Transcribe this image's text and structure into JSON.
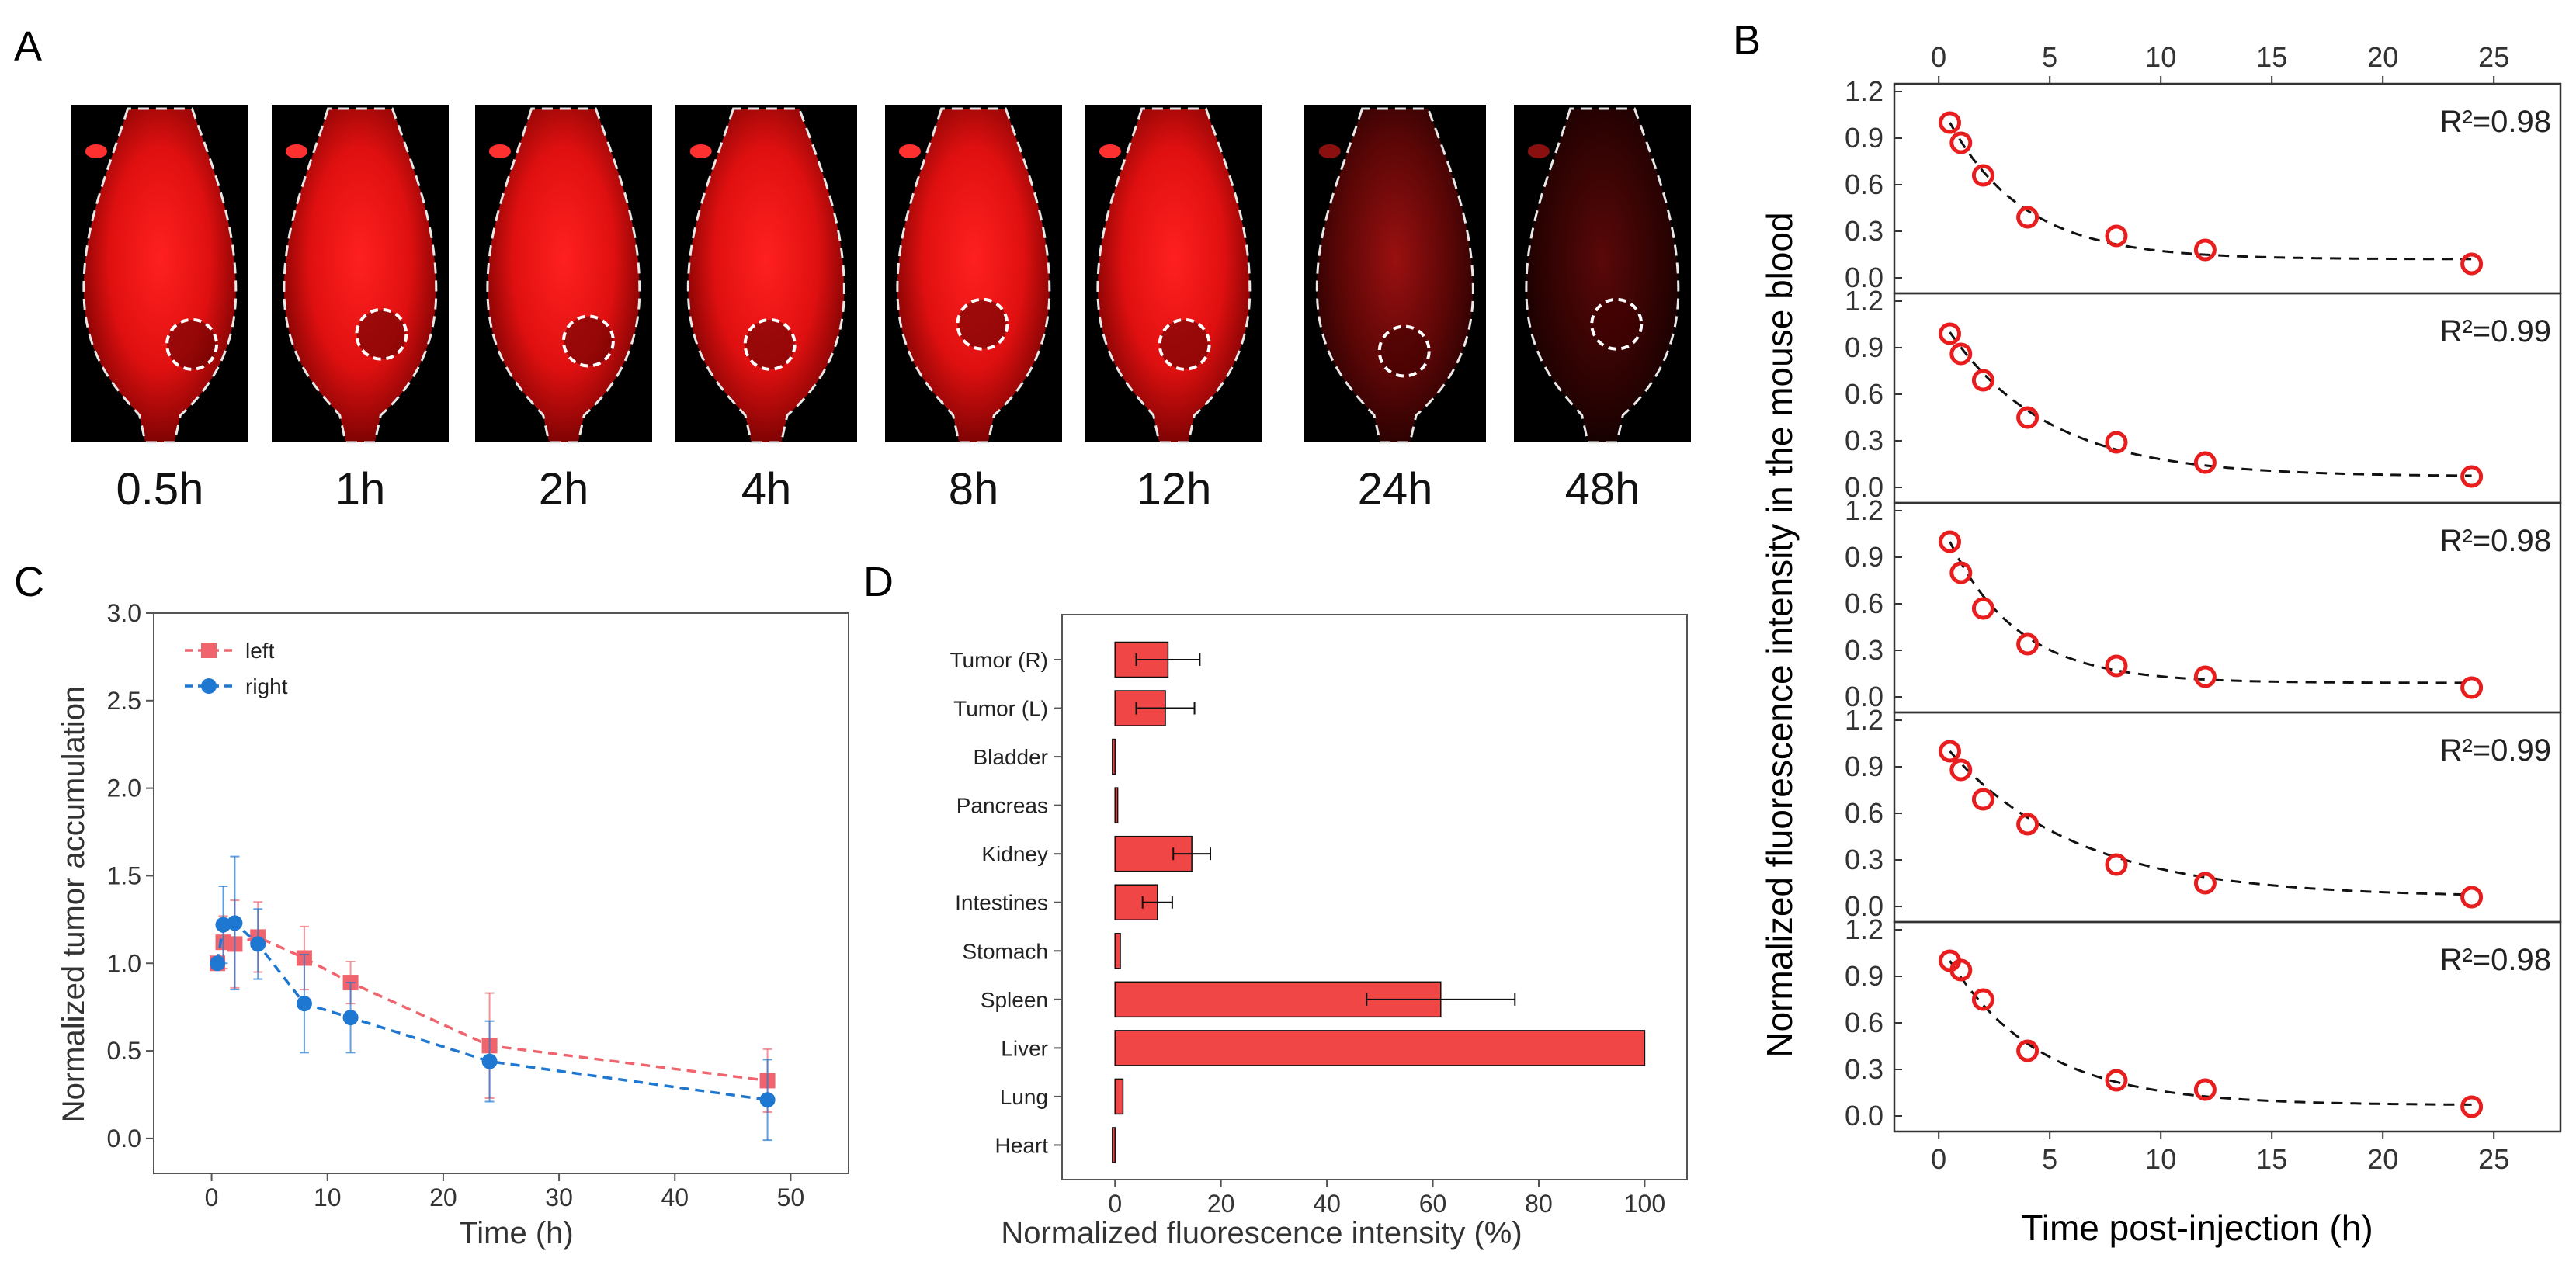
{
  "panels": {
    "A": {
      "letter": "A",
      "time_labels": [
        "0.5h",
        "1h",
        "2h",
        "4h",
        "8h",
        "12h",
        "24h",
        "48h"
      ]
    },
    "B": {
      "letter": "B"
    },
    "C": {
      "letter": "C"
    },
    "D": {
      "letter": "D"
    }
  },
  "colors": {
    "red_fluorescence": "#ff1a1a",
    "left_series": "#f0646e",
    "right_series": "#1e78d2",
    "bar_fill": "#f04646",
    "marker_red": "#e81e1e"
  },
  "chart_data": [
    {
      "id": "B",
      "type": "scatter",
      "xlabel": "Time post-injection (h)",
      "ylabel": "Normalized fluorescence intensity in the mouse blood",
      "xlim": [
        -2,
        28
      ],
      "xticks": [
        0,
        5,
        10,
        15,
        20,
        25
      ],
      "ylim": [
        -0.1,
        1.25
      ],
      "yticks": [
        "0.0",
        "0.3",
        "0.6",
        "0.9",
        "1.2"
      ],
      "subplots": [
        {
          "r2": "R²=0.98",
          "x": [
            0.5,
            1,
            2,
            4,
            8,
            12,
            24
          ],
          "y": [
            1.0,
            0.87,
            0.66,
            0.39,
            0.27,
            0.18,
            0.09
          ],
          "fit_plateau": 0.12
        },
        {
          "r2": "R²=0.99",
          "x": [
            0.5,
            1,
            2,
            4,
            8,
            12,
            24
          ],
          "y": [
            0.99,
            0.86,
            0.69,
            0.45,
            0.29,
            0.16,
            0.07
          ],
          "fit_plateau": 0.07
        },
        {
          "r2": "R²=0.98",
          "x": [
            0.5,
            1,
            2,
            4,
            8,
            12,
            24
          ],
          "y": [
            1.0,
            0.8,
            0.57,
            0.34,
            0.2,
            0.13,
            0.06
          ],
          "fit_plateau": 0.09
        },
        {
          "r2": "R²=0.99",
          "x": [
            0.5,
            1,
            2,
            4,
            8,
            12,
            24
          ],
          "y": [
            1.0,
            0.88,
            0.69,
            0.53,
            0.27,
            0.15,
            0.06
          ],
          "fit_plateau": 0.06
        },
        {
          "r2": "R²=0.98",
          "x": [
            0.5,
            1,
            2,
            4,
            8,
            12,
            24
          ],
          "y": [
            1.0,
            0.94,
            0.75,
            0.42,
            0.23,
            0.17,
            0.06
          ],
          "fit_plateau": 0.07
        }
      ]
    },
    {
      "id": "C",
      "type": "line",
      "xlabel": "Time (h)",
      "ylabel": "Normalized tumor accumulation",
      "xlim": [
        -5,
        55
      ],
      "xticks": [
        0,
        10,
        20,
        30,
        40,
        50
      ],
      "ylim": [
        -0.2,
        3.0
      ],
      "yticks": [
        "0.0",
        "0.5",
        "1.0",
        "1.5",
        "2.0",
        "2.5",
        "3.0"
      ],
      "legend": [
        "left",
        "right"
      ],
      "series": [
        {
          "name": "left",
          "x": [
            0.5,
            1,
            2,
            4,
            8,
            12,
            24,
            48
          ],
          "y": [
            1.0,
            1.12,
            1.11,
            1.15,
            1.03,
            0.89,
            0.53,
            0.33
          ],
          "err": [
            0.0,
            0.15,
            0.25,
            0.2,
            0.18,
            0.12,
            0.3,
            0.18
          ]
        },
        {
          "name": "right",
          "x": [
            0.5,
            1,
            2,
            4,
            8,
            12,
            24,
            48
          ],
          "y": [
            1.0,
            1.22,
            1.23,
            1.11,
            0.77,
            0.69,
            0.44,
            0.22
          ],
          "err": [
            0.0,
            0.22,
            0.38,
            0.2,
            0.28,
            0.2,
            0.23,
            0.23
          ]
        }
      ]
    },
    {
      "id": "D",
      "type": "bar",
      "orientation": "horizontal",
      "xlabel": "Normalized fluorescence intensity (%)",
      "xlim": [
        -10,
        108
      ],
      "xticks": [
        0,
        20,
        40,
        60,
        80,
        100
      ],
      "categories": [
        "Tumor (R)",
        "Tumor (L)",
        "Bladder",
        "Pancreas",
        "Kidney",
        "Intestines",
        "Stomach",
        "Spleen",
        "Liver",
        "Lung",
        "Heart"
      ],
      "values": [
        10,
        9.5,
        -0.5,
        0.5,
        14.5,
        8,
        1,
        61.5,
        100,
        1.5,
        -0.5
      ],
      "err": [
        6,
        5.5,
        0,
        0,
        3.5,
        2.8,
        0,
        14,
        0,
        0,
        0
      ]
    }
  ]
}
